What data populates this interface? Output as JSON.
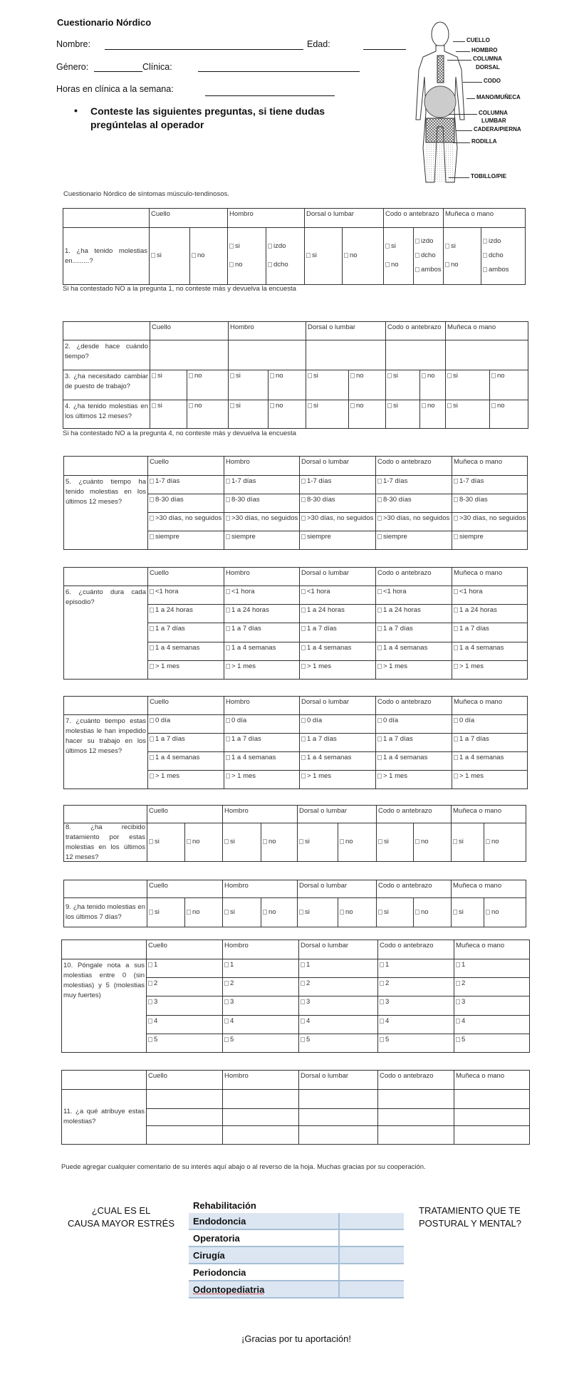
{
  "header": {
    "title": "Cuestionario Nórdico",
    "nombre_label": "Nombre:",
    "edad_label": "Edad:",
    "genero_label": "Género:",
    "clinica_label": "Clínica:",
    "horas_label": "Horas en clínica a la semana:",
    "instruction_line1": "Conteste las siguientes preguntas, si tiene dudas",
    "instruction_line2": "pregúntelas al operador"
  },
  "body_diagram": {
    "labels": [
      "CUELLO",
      "HOMBRO",
      "COLUMNA",
      "DORSAL",
      "CODO",
      "MANO/MUÑECA",
      "COLUMNA",
      "LUMBAR",
      "CADERA/PIERNA",
      "RODILLA",
      "TOBILLO/PIE"
    ]
  },
  "caption": "Cuestionario Nórdico de síntomas músculo-tendinosos.",
  "regions": [
    "Cuello",
    "Hombro",
    "Dorsal o lumbar",
    "Codo o antebrazo",
    "Muñeca o mano"
  ],
  "q1": {
    "question": "1. ¿ha tenido molestias en.........?",
    "cells": [
      {
        "left": [
          "si"
        ],
        "right": [
          "no"
        ]
      },
      {
        "left": [
          "si",
          "no"
        ],
        "right": [
          "izdo",
          "dcho"
        ]
      },
      {
        "left": [
          "si"
        ],
        "right": [
          "no"
        ]
      },
      {
        "left": [
          "si",
          "no"
        ],
        "right": [
          "izdo",
          "dcho",
          "ambos"
        ]
      },
      {
        "left": [
          "si",
          "no"
        ],
        "right": [
          "izdo",
          "dcho",
          "ambos"
        ]
      }
    ],
    "note": "Si ha contestado NO a la pregunta 1, no conteste más y devuelva la encuesta"
  },
  "q2": {
    "question": "2. ¿desde hace cuándo tiempo?"
  },
  "q3": {
    "question": "3. ¿ha necesitado cambiar de puesto de trabajo?",
    "options": [
      "si",
      "no"
    ]
  },
  "q4": {
    "question": "4. ¿ha tenido molestias en los últimos 12 meses?",
    "options": [
      "si",
      "no"
    ],
    "note": "Si ha contestado NO a la pregunta 4, no conteste más y devuelva la encuesta"
  },
  "q5": {
    "question": "5. ¿cuánto tiempo ha tenido molestias en los últimos 12 meses?",
    "options": [
      "1-7 días",
      "8-30 días",
      ">30 días, no seguidos",
      "siempre"
    ]
  },
  "q6": {
    "question": "6. ¿cuánto dura cada episodio?",
    "options": [
      "<1 hora",
      "1 a 24 horas",
      "1 a 7 días",
      "1 a 4 semanas",
      "> 1 mes"
    ]
  },
  "q7": {
    "question": "7. ¿cuánto tiempo estas molestias le han impedido hacer su trabajo en los últimos 12 meses?",
    "options": [
      "0 día",
      "1 a 7 días",
      "1 a 4 semanas",
      "> 1 mes"
    ]
  },
  "q8": {
    "question": "8. ¿ha recibido tratamiento por estas molestias en los últimos 12 meses?",
    "options": [
      "si",
      "no"
    ]
  },
  "q9": {
    "question": "9. ¿ha tenido molestias en los últimos 7 días?",
    "options": [
      "si",
      "no"
    ]
  },
  "q10": {
    "question": "10. Póngale nota a sus molestias entre 0 (sin molestias) y 5 (molestias muy fuertes)",
    "options": [
      "1",
      "2",
      "3",
      "4",
      "5"
    ]
  },
  "q11": {
    "question": "11. ¿a qué atribuye estas molestias?"
  },
  "comment": "Puede agregar cualquier comentario de su interés aquí abajo o al reverso de la hoja. Muchas gracias por su cooperación.",
  "stress": {
    "left_line1": "¿CUAL ES EL",
    "left_line2": "CAUSA MAYOR ESTRÉS",
    "right_line1": "TRATAMIENTO QUE TE",
    "right_line2": "POSTURAL Y MENTAL?",
    "options": [
      "Rehabilitación",
      "Endodoncia",
      "Operatoria",
      "Cirugía",
      "Periodoncia",
      "Odontopediatria"
    ],
    "shade_color": "#dce6f2"
  },
  "thanks": "¡Gracias por tu aportación!"
}
